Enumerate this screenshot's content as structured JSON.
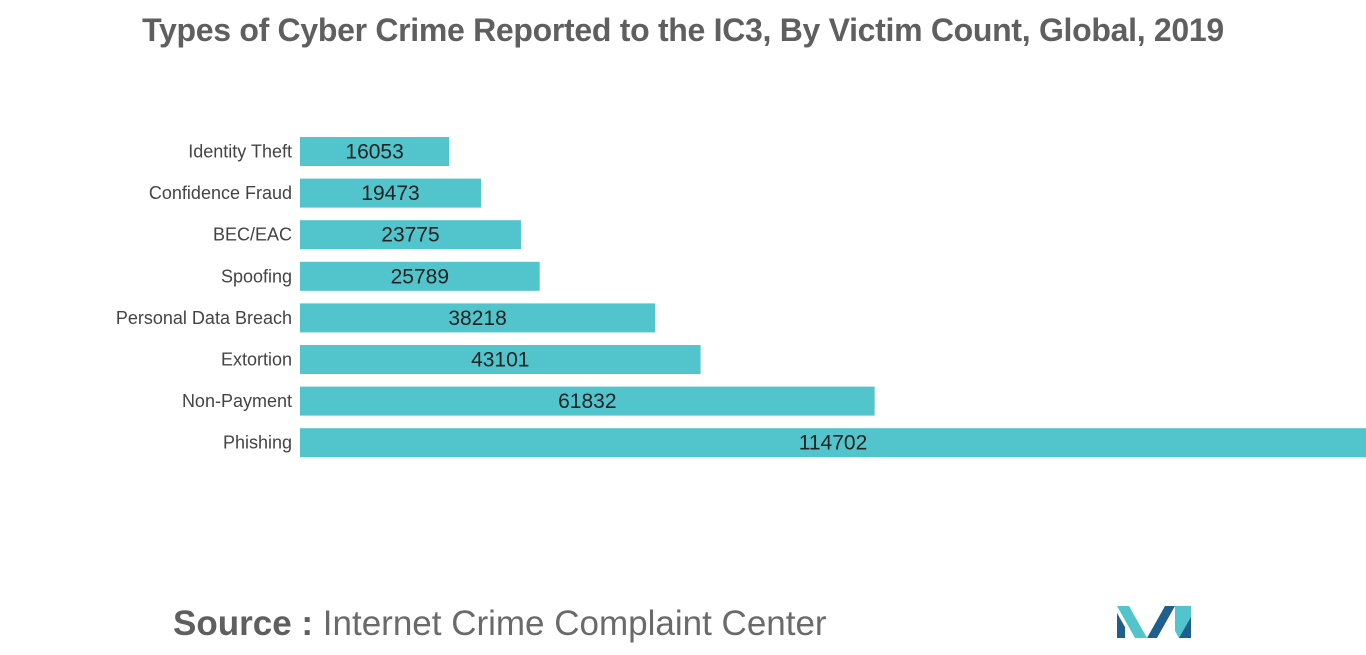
{
  "chart_data": {
    "type": "bar",
    "orientation": "horizontal",
    "title": "Types of Cyber Crime Reported to the IC3, By Victim Count, Global, 2019",
    "categories": [
      "Identity Theft",
      "Confidence Fraud",
      "BEC/EAC",
      "Spoofing",
      "Personal Data Breach",
      "Extortion",
      "Non-Payment",
      "Phishing"
    ],
    "values": [
      16053,
      19473,
      23775,
      25789,
      38218,
      43101,
      61832,
      114702
    ],
    "data_labels": [
      "16053",
      "19473",
      "23775",
      "25789",
      "38218",
      "43101",
      "61832",
      "114702"
    ],
    "xlabel": "",
    "ylabel": "",
    "grid": false,
    "legend": "none",
    "bar_color": "#52c4cb"
  },
  "source": {
    "prefix": "Source :",
    "text": "Internet Crime Complaint Center"
  },
  "logo": {
    "icon": "mordor-intelligence-logo-icon",
    "colors": [
      "#1e5f8e",
      "#52c4cb"
    ]
  }
}
